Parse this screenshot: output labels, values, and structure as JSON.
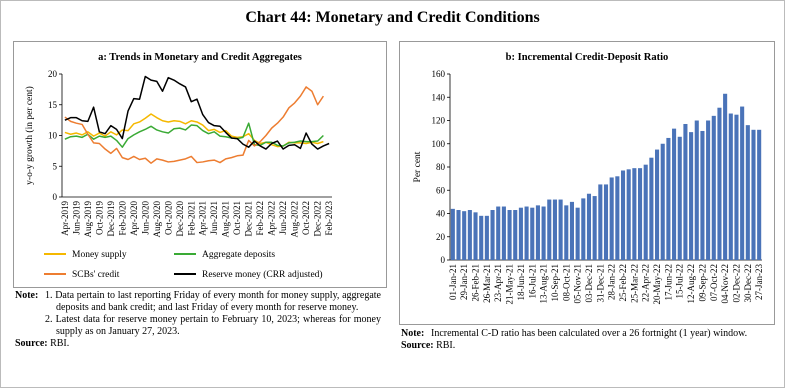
{
  "title": "Chart 44: Monetary and Credit Conditions",
  "chart_data": [
    {
      "type": "line",
      "title": "a: Trends in Monetary and Credit Aggregates",
      "y_label": "y-o-y growth (in per cent)",
      "categories": [
        "Apr-2019",
        null,
        "Jun-2019",
        null,
        "Aug-2019",
        null,
        "Oct-2019",
        null,
        "Dec-2019",
        null,
        "Feb-2020",
        null,
        "Apr-2020",
        null,
        "Jun-2020",
        null,
        "Aug-2020",
        null,
        "Oct-2020",
        null,
        "Dec-2020",
        null,
        "Feb-2021",
        null,
        "Apr-2021",
        null,
        "Jun-2021",
        null,
        "Aug-2021",
        null,
        "Oct-2021",
        null,
        "Dec-2021",
        null,
        "Feb-2022",
        null,
        "Apr-2022",
        null,
        "Jun-2022",
        null,
        "Aug-2022",
        null,
        "Oct-2022",
        null,
        "Dec-2022",
        null,
        "Feb-2023"
      ],
      "series": [
        {
          "name": "Money supply",
          "color": "#f5b800",
          "values": [
            10.5,
            10.2,
            10.4,
            10.1,
            10.6,
            9.9,
            10.4,
            9.9,
            10.6,
            10.1,
            10.9,
            10.8,
            11.9,
            12.2,
            12.8,
            13.5,
            12.9,
            12.4,
            12.2,
            12.4,
            12.3,
            11.9,
            12.4,
            12.2,
            11.7,
            10.8,
            11.0,
            10.5,
            10.8,
            9.9,
            9.7,
            9.8,
            10.3,
            9.2,
            8.7,
            8.9,
            8.5,
            8.2,
            8.3,
            8.9,
            8.8,
            8.8,
            8.7,
            8.9,
            8.7,
            9.0,
            null
          ]
        },
        {
          "name": "Aggregate deposits",
          "color": "#3aaa35",
          "values": [
            9.4,
            9.8,
            9.9,
            9.7,
            10.2,
            9.4,
            9.9,
            9.7,
            9.9,
            9.2,
            8.1,
            9.5,
            10.1,
            10.6,
            11.0,
            11.5,
            10.9,
            10.6,
            10.4,
            11.1,
            11.2,
            10.9,
            11.7,
            11.6,
            10.8,
            10.3,
            10.6,
            9.9,
            9.8,
            9.6,
            9.5,
            9.7,
            12.0,
            8.5,
            8.4,
            8.9,
            8.9,
            8.4,
            8.3,
            8.8,
            8.9,
            9.1,
            9.0,
            9.0,
            9.1,
            10.0,
            null
          ]
        },
        {
          "name": "SCBs' credit",
          "color": "#ed7d31",
          "values": [
            13.0,
            12.3,
            12.0,
            11.8,
            10.2,
            8.8,
            8.7,
            7.8,
            7.1,
            7.9,
            6.4,
            6.1,
            6.6,
            6.1,
            6.3,
            5.5,
            6.2,
            6.0,
            5.7,
            5.8,
            6.0,
            6.2,
            6.6,
            5.6,
            5.7,
            5.9,
            6.0,
            5.6,
            6.2,
            6.4,
            6.7,
            6.8,
            9.2,
            8.3,
            9.0,
            10.0,
            11.2,
            12.0,
            13.0,
            14.5,
            15.3,
            16.4,
            17.9,
            17.2,
            15.0,
            16.4,
            null
          ]
        },
        {
          "name": "Reserve money (CRR adjusted)",
          "color": "#000000",
          "values": [
            12.5,
            12.9,
            12.9,
            12.4,
            12.3,
            14.6,
            10.6,
            10.3,
            11.6,
            11.0,
            9.5,
            14.0,
            16.0,
            15.9,
            19.6,
            19.0,
            18.8,
            17.2,
            19.4,
            19.0,
            18.4,
            17.9,
            15.5,
            15.9,
            13.4,
            12.1,
            11.6,
            11.5,
            10.5,
            9.6,
            9.5,
            8.6,
            8.1,
            9.1,
            8.3,
            7.8,
            8.7,
            9.1,
            7.8,
            8.4,
            8.5,
            7.9,
            10.4,
            8.6,
            7.8,
            8.3,
            8.7
          ]
        }
      ],
      "ylim": [
        0,
        20
      ],
      "yticks": [
        0,
        5,
        10,
        15,
        20
      ],
      "grid": false,
      "note_label": "Note:",
      "notes": [
        "1. Data pertain to last reporting Friday of every month for money supply, aggregate deposits and bank credit; and last Friday of every month for reserve money.",
        "2. Latest data for reserve money pertain to February 10, 2023; whereas for money supply as on January 27, 2023."
      ],
      "source_label": "Source:",
      "source": "RBI."
    },
    {
      "type": "bar",
      "title": "b: Incremental Credit-Deposit Ratio",
      "y_label": "Per cent",
      "categories": [
        "01-Jan-21",
        null,
        "29-Jan-21",
        null,
        "26-Feb-21",
        null,
        "26-Mar-21",
        null,
        "23-Apr-21",
        null,
        "21-May-21",
        null,
        "18-Jun-21",
        null,
        "16-Jul-21",
        null,
        "13-Aug-21",
        null,
        "10-Sep-21",
        null,
        "08-Oct-21",
        null,
        "05-Nov-21",
        null,
        "03-Dec-21",
        null,
        "31-Dec-21",
        null,
        "28-Jan-22",
        null,
        "25-Feb-22",
        null,
        "25-Mar-22",
        null,
        "22-Apr-22",
        null,
        "20-May-22",
        null,
        "17-Jun-22",
        null,
        "15-Jul-22",
        null,
        "12-Aug-22",
        null,
        "09-Sep-22",
        null,
        "07-Oct-22",
        null,
        "04-Nov-22",
        null,
        "02-Dec-22",
        null,
        "30-Dec-22",
        null,
        "27-Jan-23"
      ],
      "values": [
        44,
        43,
        42,
        43,
        41,
        38,
        38,
        43,
        46,
        46,
        43,
        43,
        45,
        46,
        45,
        47,
        46,
        52,
        52,
        52,
        47,
        50,
        45,
        53,
        57,
        55,
        65,
        65,
        71,
        72,
        77,
        78,
        79,
        79,
        82,
        88,
        95,
        100,
        105,
        113,
        106,
        117,
        110,
        120,
        111,
        120,
        124,
        131,
        143,
        126,
        125,
        132,
        116,
        112,
        112
      ],
      "color": "#4a73b8",
      "ylim": [
        0,
        160
      ],
      "yticks": [
        0,
        20,
        40,
        60,
        80,
        100,
        120,
        140,
        160
      ],
      "grid": false,
      "note_label": "Note:",
      "notes": [
        "Incremental C-D ratio has been calculated over a 26 fortnight (1 year) window."
      ],
      "source_label": "Source:",
      "source": "RBI."
    }
  ]
}
